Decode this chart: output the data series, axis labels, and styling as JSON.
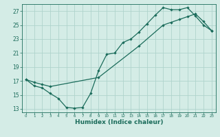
{
  "xlabel": "Humidex (Indice chaleur)",
  "ylabel": "",
  "background_color": "#d4ece6",
  "grid_color": "#afd4cc",
  "line_color": "#1a6b5a",
  "xlim": [
    -0.5,
    23.5
  ],
  "ylim": [
    12.5,
    28.0
  ],
  "xticks": [
    0,
    1,
    2,
    3,
    4,
    5,
    6,
    7,
    8,
    9,
    10,
    11,
    12,
    13,
    14,
    15,
    16,
    17,
    18,
    19,
    20,
    21,
    22,
    23
  ],
  "yticks": [
    13,
    15,
    17,
    19,
    21,
    23,
    25,
    27
  ],
  "line1_x": [
    0,
    1,
    2,
    3,
    4,
    5,
    6,
    7,
    8,
    9,
    10,
    11,
    12,
    13,
    14,
    15,
    16,
    17,
    18,
    19,
    20,
    21,
    22,
    23
  ],
  "line1_y": [
    17.2,
    16.3,
    16.0,
    15.2,
    14.5,
    13.2,
    13.1,
    13.2,
    15.2,
    18.5,
    20.8,
    21.0,
    22.5,
    23.0,
    24.0,
    25.2,
    26.4,
    27.5,
    27.2,
    27.2,
    27.5,
    26.3,
    25.0,
    24.2
  ],
  "line2_x": [
    0,
    1,
    2,
    3,
    9,
    14,
    17,
    18,
    19,
    20,
    21,
    22,
    23
  ],
  "line2_y": [
    17.2,
    16.8,
    16.5,
    16.2,
    17.5,
    22.0,
    25.0,
    25.4,
    25.8,
    26.2,
    26.6,
    25.5,
    24.2
  ]
}
